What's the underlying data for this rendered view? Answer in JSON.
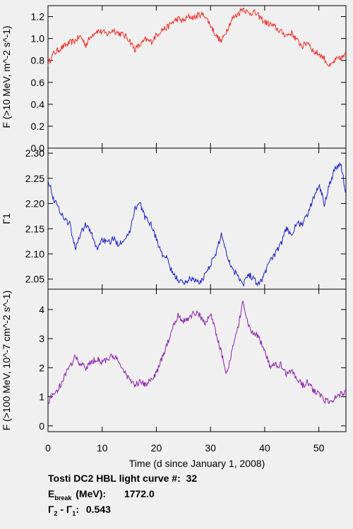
{
  "chart_data": [
    {
      "type": "line",
      "panel": "top",
      "ylabel": "F (>10 MeV, m^-2 s^-1)",
      "ylim": [
        0.0,
        1.3
      ],
      "yticks": [
        "0.0",
        "0.2",
        "0.4",
        "0.6",
        "0.8",
        "1.0",
        "1.2"
      ],
      "color": "#e8302a",
      "series": [
        {
          "x": [
            0,
            1,
            2,
            3,
            4,
            5,
            6,
            7,
            8,
            9,
            10,
            11,
            12,
            13,
            14,
            15,
            16,
            17,
            18,
            19,
            20,
            21,
            22,
            23,
            24,
            25,
            26,
            27,
            28,
            29,
            30,
            31,
            32,
            33,
            34,
            35,
            36,
            37,
            38,
            39,
            40,
            41,
            42,
            43,
            44,
            45,
            46,
            47,
            48,
            49,
            50,
            51,
            52,
            53,
            54,
            55
          ],
          "values": [
            0.77,
            0.86,
            0.9,
            0.93,
            0.96,
            0.98,
            1.02,
            0.94,
            1.03,
            1.07,
            1.06,
            1.04,
            1.08,
            1.05,
            1.03,
            0.99,
            0.9,
            0.94,
            0.99,
            0.97,
            1.03,
            1.08,
            1.1,
            1.15,
            1.18,
            1.16,
            1.2,
            1.19,
            1.22,
            1.21,
            1.12,
            1.03,
            0.97,
            1.08,
            1.18,
            1.22,
            1.28,
            1.23,
            1.24,
            1.2,
            1.15,
            1.13,
            1.1,
            1.06,
            1.03,
            1.05,
            0.98,
            0.93,
            0.97,
            0.88,
            0.86,
            0.82,
            0.74,
            0.8,
            0.82,
            0.85
          ]
        }
      ]
    },
    {
      "type": "line",
      "panel": "middle",
      "ylabel": "Γ1",
      "ylim": [
        2.03,
        2.31
      ],
      "yticks": [
        "2.05",
        "2.10",
        "2.15",
        "2.20",
        "2.25",
        "2.30"
      ],
      "color": "#2020c0",
      "series": [
        {
          "x": [
            0,
            1,
            2,
            3,
            4,
            5,
            6,
            7,
            8,
            9,
            10,
            11,
            12,
            13,
            14,
            15,
            16,
            17,
            18,
            19,
            20,
            21,
            22,
            23,
            24,
            25,
            26,
            27,
            28,
            29,
            30,
            31,
            32,
            33,
            34,
            35,
            36,
            37,
            38,
            39,
            40,
            41,
            42,
            43,
            44,
            45,
            46,
            47,
            48,
            49,
            50,
            51,
            52,
            53,
            54,
            55
          ],
          "values": [
            2.25,
            2.21,
            2.19,
            2.17,
            2.16,
            2.11,
            2.14,
            2.16,
            2.14,
            2.11,
            2.13,
            2.12,
            2.13,
            2.12,
            2.13,
            2.14,
            2.19,
            2.2,
            2.17,
            2.16,
            2.13,
            2.1,
            2.09,
            2.06,
            2.05,
            2.04,
            2.05,
            2.05,
            2.04,
            2.06,
            2.08,
            2.1,
            2.14,
            2.1,
            2.07,
            2.06,
            2.04,
            2.06,
            2.05,
            2.04,
            2.06,
            2.09,
            2.1,
            2.12,
            2.15,
            2.14,
            2.16,
            2.16,
            2.18,
            2.21,
            2.24,
            2.2,
            2.24,
            2.27,
            2.28,
            2.22
          ]
        }
      ]
    },
    {
      "type": "line",
      "panel": "bottom",
      "ylabel": "F (>100 MeV, 10^-7 cm^-2 s^-1)",
      "xlabel": "Time (d since January 1, 2008)",
      "ylim": [
        -0.2,
        4.7
      ],
      "xlim": [
        0,
        55
      ],
      "xticks": [
        "0",
        "10",
        "20",
        "30",
        "40",
        "50"
      ],
      "yticks": [
        "0",
        "1",
        "2",
        "3",
        "4"
      ],
      "color": "#8a22a8",
      "series": [
        {
          "x": [
            0,
            1,
            2,
            3,
            4,
            5,
            6,
            7,
            8,
            9,
            10,
            11,
            12,
            13,
            14,
            15,
            16,
            17,
            18,
            19,
            20,
            21,
            22,
            23,
            24,
            25,
            26,
            27,
            28,
            29,
            30,
            31,
            32,
            33,
            34,
            35,
            36,
            37,
            38,
            39,
            40,
            41,
            42,
            43,
            44,
            45,
            46,
            47,
            48,
            49,
            50,
            51,
            52,
            53,
            54,
            55
          ],
          "values": [
            0.8,
            1.1,
            1.3,
            1.7,
            2.0,
            2.4,
            2.1,
            2.0,
            2.2,
            2.3,
            2.2,
            2.3,
            2.4,
            2.2,
            1.9,
            1.6,
            1.4,
            1.5,
            1.4,
            1.6,
            1.8,
            2.3,
            2.8,
            3.4,
            3.8,
            3.6,
            3.7,
            3.9,
            3.8,
            3.5,
            3.9,
            3.2,
            2.5,
            1.8,
            2.6,
            3.3,
            4.3,
            3.4,
            3.2,
            3.0,
            2.6,
            2.0,
            2.1,
            2.1,
            1.8,
            1.9,
            1.6,
            1.4,
            1.5,
            1.2,
            1.1,
            0.9,
            0.8,
            1.0,
            1.1,
            1.2
          ]
        }
      ]
    }
  ],
  "info": {
    "title_label": "Tosti DC2 HBL light curve #:",
    "title_value": "32",
    "ebreak_symbol": "E",
    "ebreak_sub": "break",
    "ebreak_unit": "(MeV):",
    "ebreak_value": "1772.0",
    "gamma_diff_label": "Γ",
    "gamma_diff_sub_a": "2",
    "gamma_diff_mid": " - Γ",
    "gamma_diff_sub_b": "1",
    "gamma_diff_colon": ":",
    "gamma_diff_value": "0.543"
  }
}
